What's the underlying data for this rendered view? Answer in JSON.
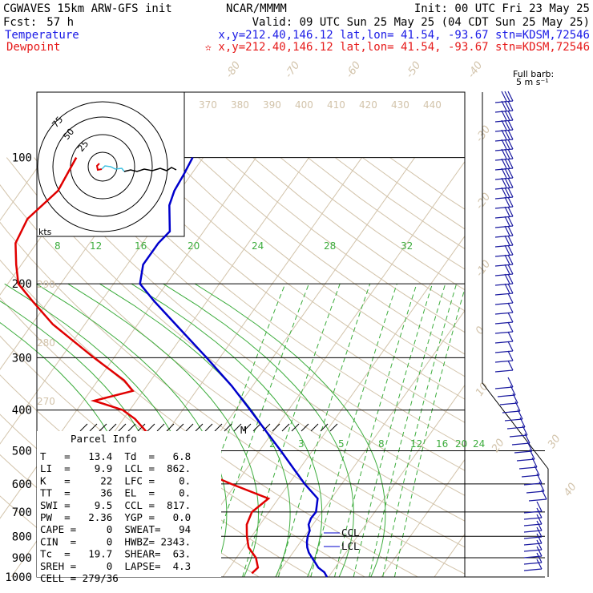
{
  "header": {
    "model": "CGWAVES 15km ARW-GFS init",
    "org": "NCAR/MMMM",
    "init": "Init: 00 UTC Fri 23 May 25",
    "fcst_label": "Fcst:",
    "fcst_value": "57 h",
    "valid": "Valid: 09 UTC Sun 25 May 25 (04 CDT Sun 25 May 25)",
    "temp_label": "Temperature",
    "temp_loc": "x,y=212.40,146.12   lat,lon= 41.54, -93.67   stn=KDSM,72546",
    "dew_label": "Dewpoint",
    "dew_loc": "✫ x,y=212.40,146.12   lat,lon= 41.54, -93.67   stn=KDSM,72546",
    "barb_label_1": "Full barb:",
    "barb_label_2": "5 m s⁻¹"
  },
  "colors": {
    "temperature": "#0000cc",
    "dewpoint": "#e00000",
    "isotherm": "#d2c3aa",
    "mixing_ratio": "#3cac3c",
    "header_temp": "#1a1ae6",
    "header_dew": "#e61a1a"
  },
  "chart_data": {
    "type": "skew-t",
    "pressure_levels": [
      "100",
      "200",
      "300",
      "400",
      "500",
      "600",
      "700",
      "800",
      "900",
      "1000"
    ],
    "isotherm_labels": [
      "-80",
      "-70",
      "-60",
      "-50",
      "-40",
      "-30",
      "-20",
      "-10",
      "0",
      "10",
      "20",
      "30",
      "40"
    ],
    "theta_labels_top": [
      "370",
      "380",
      "390",
      "400",
      "410",
      "420",
      "430",
      "440"
    ],
    "theta_labels_left": [
      "290",
      "280",
      "270"
    ],
    "mixing_ratio_labels_upper": [
      "8",
      "12",
      "16",
      "20",
      "24",
      "28",
      "32"
    ],
    "mixing_ratio_labels_lower": [
      "2",
      "3",
      "5",
      "8",
      "12",
      "16",
      "20",
      "24"
    ],
    "temperature_profile": [
      {
        "p": 1000,
        "t": 19.7
      },
      {
        "p": 975,
        "t": 18.6
      },
      {
        "p": 950,
        "t": 16.8
      },
      {
        "p": 925,
        "t": 15.6
      },
      {
        "p": 900,
        "t": 14.3
      },
      {
        "p": 875,
        "t": 13.0
      },
      {
        "p": 850,
        "t": 12.0
      },
      {
        "p": 825,
        "t": 11.2
      },
      {
        "p": 800,
        "t": 10.6
      },
      {
        "p": 775,
        "t": 10.2
      },
      {
        "p": 750,
        "t": 9.2
      },
      {
        "p": 725,
        "t": 8.8
      },
      {
        "p": 700,
        "t": 8.9
      },
      {
        "p": 650,
        "t": 7.4
      },
      {
        "p": 600,
        "t": 3.0
      },
      {
        "p": 550,
        "t": -1.3
      },
      {
        "p": 500,
        "t": -6.0
      },
      {
        "p": 450,
        "t": -11.3
      },
      {
        "p": 400,
        "t": -17.2
      },
      {
        "p": 350,
        "t": -24.0
      },
      {
        "p": 300,
        "t": -32.5
      },
      {
        "p": 250,
        "t": -42.8
      },
      {
        "p": 220,
        "t": -50.0
      },
      {
        "p": 200,
        "t": -55.0
      },
      {
        "p": 180,
        "t": -57.0
      },
      {
        "p": 160,
        "t": -57.0
      },
      {
        "p": 150,
        "t": -56.4
      },
      {
        "p": 130,
        "t": -60.0
      },
      {
        "p": 120,
        "t": -61.0
      },
      {
        "p": 110,
        "t": -61.4
      },
      {
        "p": 100,
        "t": -62.0
      }
    ],
    "dewpoint_profile": [
      {
        "p": 980,
        "td": 5.0
      },
      {
        "p": 950,
        "td": 5.4
      },
      {
        "p": 900,
        "td": 3.7
      },
      {
        "p": 850,
        "td": 0.9
      },
      {
        "p": 800,
        "td": -0.9
      },
      {
        "p": 750,
        "td": -2.5
      },
      {
        "p": 700,
        "td": -3.2
      },
      {
        "p": 650,
        "td": -1.9
      },
      {
        "p": 600,
        "td": -10.9
      },
      {
        "p": 550,
        "td": -20.1
      },
      {
        "p": 500,
        "td": -26.5
      },
      {
        "p": 470,
        "td": -35.0
      },
      {
        "p": 450,
        "td": -34.0
      },
      {
        "p": 420,
        "td": -37.8
      },
      {
        "p": 400,
        "td": -41.3
      },
      {
        "p": 380,
        "td": -48.0
      },
      {
        "p": 360,
        "td": -42.0
      },
      {
        "p": 340,
        "td": -45.0
      },
      {
        "p": 300,
        "td": -53.8
      },
      {
        "p": 250,
        "td": -66.0
      },
      {
        "p": 220,
        "td": -73.0
      },
      {
        "p": 200,
        "td": -78.0
      },
      {
        "p": 180,
        "td": -81.0
      },
      {
        "p": 160,
        "td": -84.0
      },
      {
        "p": 140,
        "td": -85.0
      },
      {
        "p": 120,
        "td": -83.0
      },
      {
        "p": 100,
        "td": -84.0
      }
    ],
    "parcel_info": {
      "title": "Parcel Info",
      "rows": [
        "T   =   13.4  Td  =   6.8",
        "LI  =    9.9  LCL =  862.",
        "K   =     22  LFC =    0.",
        "TT  =     36  EL  =    0.",
        "SWI =    9.5  CCL =  817.",
        "PW  =   2.36  YGP =   0.0",
        "CAPE =     0  SWEAT=   94",
        "CIN  =     0  HWBZ= 2343.",
        "Tc  =   19.7  SHEAR=  63.",
        "SREH =     0  LAPSE=  4.3",
        "CELL = 279/36"
      ]
    },
    "annotations": {
      "lcl": "LCL",
      "ccl": "CCL",
      "melting_marker": "M"
    },
    "hodograph": {
      "ring_labels": [
        "75",
        "50",
        "25"
      ],
      "units": "kts"
    }
  }
}
